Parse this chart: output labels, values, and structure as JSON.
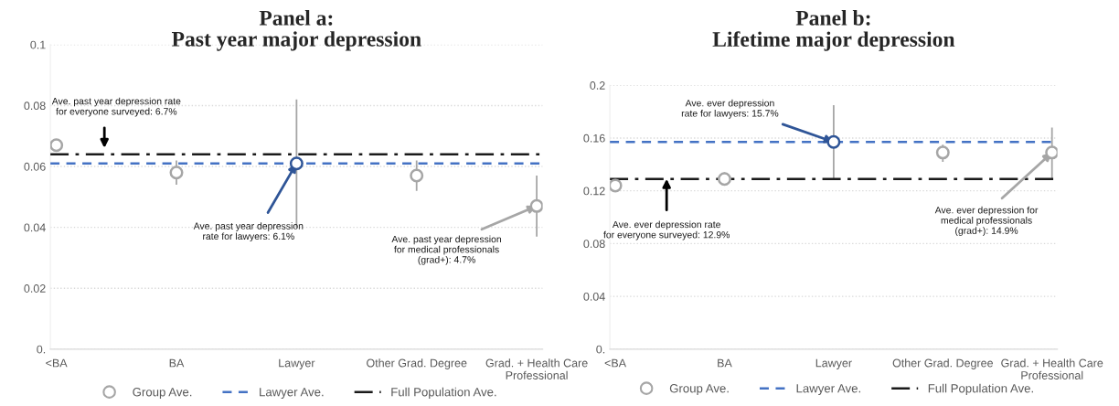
{
  "chart_data": [
    {
      "type": "scatter",
      "title": "Panel a:\nPast year major depression",
      "categories": [
        "<BA",
        "BA",
        "Lawyer",
        "Other Grad. Degree",
        "Grad. + Health Care\nProfessional"
      ],
      "series": [
        {
          "name": "Group Ave.",
          "colors": [
            "#a6a6a6",
            "#a6a6a6",
            "#2f5597",
            "#a6a6a6",
            "#a6a6a6"
          ],
          "values": [
            0.067,
            0.058,
            0.061,
            0.057,
            0.047
          ],
          "errors": [
            [
              0.065,
              0.068
            ],
            [
              0.054,
              0.062
            ],
            [
              0.04,
              0.082
            ],
            [
              0.052,
              0.062
            ],
            [
              0.037,
              0.057
            ]
          ]
        }
      ],
      "ref_lines": [
        {
          "axis": "y",
          "value": 0.061,
          "label": "Lawyer Ave.",
          "color": "#4472c4",
          "line_style": "dashed"
        },
        {
          "axis": "y",
          "value": 0.064,
          "label": "Full Population Ave.",
          "color": "#1a1a1a",
          "line_style": "dashdot"
        }
      ],
      "annotations": [
        "Ave. past year depression rate\nfor everyone surveyed: 6.7%",
        {
          "text": "Ave. past year depression\nrate for lawyers: 6.1%",
          "x": "Lawyer",
          "y": 0.061
        },
        {
          "text": "Ave. past year depression\nfor medical professionals\n(grad+): 4.7%",
          "x": "Grad. + Health Care\nProfessional",
          "y": 0.047
        }
      ],
      "ylim": [
        0,
        0.1
      ],
      "yticks": [
        {
          "value": 0,
          "label": "0."
        },
        0.02,
        0.04,
        0.06,
        0.08,
        0.1
      ],
      "marker": "circle",
      "grid": "y",
      "legend": "bottom"
    },
    {
      "type": "scatter",
      "title": "Panel b:\nLifetime major depression",
      "categories": [
        "<BA",
        "BA",
        "Lawyer",
        "Other Grad. Degree",
        "Grad. + Health Care\nProfessional"
      ],
      "series": [
        {
          "name": "Group Ave.",
          "colors": [
            "#a6a6a6",
            "#a6a6a6",
            "#2f5597",
            "#a6a6a6",
            "#a6a6a6"
          ],
          "values": [
            0.124,
            0.129,
            0.157,
            0.149,
            0.149
          ],
          "errors": [
            [
              0.122,
              0.126
            ],
            [
              0.125,
              0.134
            ],
            [
              0.129,
              0.185
            ],
            [
              0.142,
              0.155
            ],
            [
              0.129,
              0.168
            ]
          ]
        }
      ],
      "ref_lines": [
        {
          "axis": "y",
          "value": 0.157,
          "label": "Lawyer Ave.",
          "color": "#4472c4",
          "line_style": "dashed"
        },
        {
          "axis": "y",
          "value": 0.129,
          "label": "Full Population Ave.",
          "color": "#1a1a1a",
          "line_style": "dashdot"
        }
      ],
      "annotations": [
        {
          "text": "Ave. ever depression\nrate for lawyers: 15.7%",
          "x": "Lawyer",
          "y": 0.157
        },
        {
          "text": "Ave. ever depression rate\nfor everyone surveyed: 12.9%",
          "y": 0.129
        },
        {
          "text": "Ave. ever depression for\nmedical professionals\n(grad+): 14.9%",
          "x": "Grad. + Health Care\nProfessional",
          "y": 0.149
        }
      ],
      "ylim": [
        0,
        0.2
      ],
      "yticks": [
        {
          "value": 0,
          "label": "0."
        },
        0.04,
        0.08,
        0.12,
        0.16,
        0.2
      ],
      "marker": "circle",
      "grid": "y",
      "legend": "bottom"
    }
  ]
}
